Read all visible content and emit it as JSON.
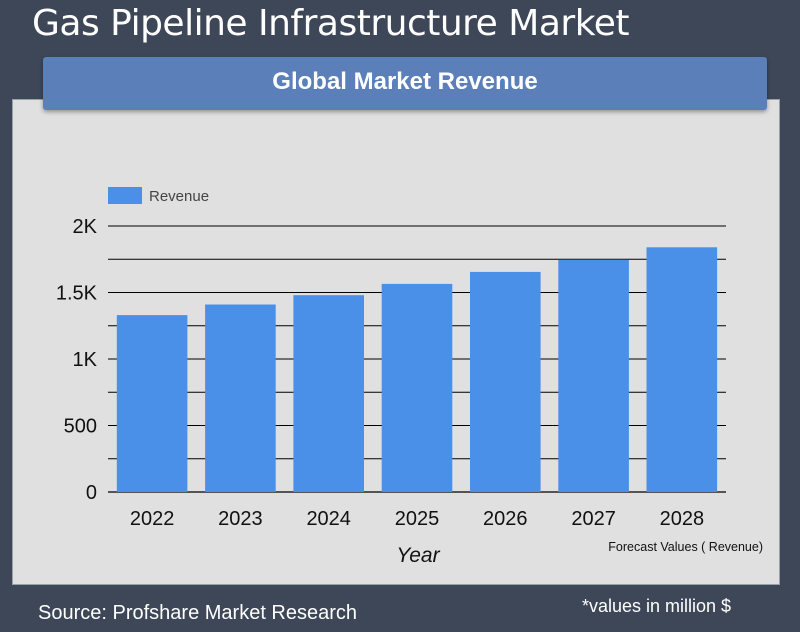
{
  "header": {
    "title": "Gas Pipeline Infrastructure Market",
    "banner": "Global Market Revenue"
  },
  "footer": {
    "source": "Source: Profshare Market Research",
    "note": "*values in million $"
  },
  "colors": {
    "background": "#3d4758",
    "panel": "#e0e0e0",
    "banner": "#5b7fb9",
    "bar": "#4a90e8",
    "grid": "#000000"
  },
  "chart_data": {
    "type": "bar",
    "categories": [
      "2022",
      "2023",
      "2024",
      "2025",
      "2026",
      "2027",
      "2028"
    ],
    "series": [
      {
        "name": "Revenue",
        "values": [
          1330,
          1410,
          1480,
          1565,
          1655,
          1745,
          1840
        ]
      }
    ],
    "xlabel": "Year",
    "ylabel": "",
    "ylim": [
      0,
      2000
    ],
    "yticks": [
      0,
      500,
      1000,
      1500,
      2000
    ],
    "ytick_labels": [
      "0",
      "500",
      "1K",
      "1.5K",
      "2K"
    ],
    "legend": "top-left",
    "grid": true,
    "annotation": "Forecast Values ( Revenue)"
  }
}
